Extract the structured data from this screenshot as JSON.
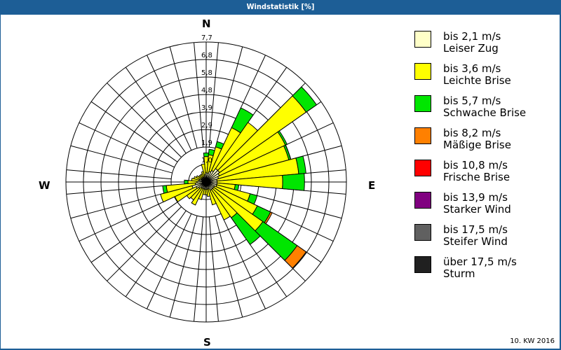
{
  "window": {
    "title": "Windstatistik [%]"
  },
  "compass": {
    "n": "N",
    "e": "E",
    "s": "S",
    "w": "W"
  },
  "footer": {
    "label": "10. KW 2016"
  },
  "legend": [
    {
      "range": "bis 2,1 m/s",
      "name": "Leiser Zug",
      "color": "#ffffc8"
    },
    {
      "range": "bis 3,6 m/s",
      "name": "Leichte Brise",
      "color": "#ffff00"
    },
    {
      "range": "bis 5,7 m/s",
      "name": "Schwache Brise",
      "color": "#00e600"
    },
    {
      "range": "bis 8,2 m/s",
      "name": "Mäßige Brise",
      "color": "#ff8000"
    },
    {
      "range": "bis 10,8 m/s",
      "name": "Frische Brise",
      "color": "#ff0000"
    },
    {
      "range": "bis 13,9 m/s",
      "name": "Starker Wind",
      "color": "#800080"
    },
    {
      "range": "bis 17,5 m/s",
      "name": "Steifer Wind",
      "color": "#606060"
    },
    {
      "range": "über 17,5 m/s",
      "name": "Sturm",
      "color": "#202020"
    }
  ],
  "chart_data": {
    "type": "wind-rose",
    "title": "Windstatistik [%]",
    "subtitle": "10. KW 2016",
    "unit": "%",
    "radial_ticks": [
      "1,0",
      "1,9",
      "2,9",
      "3,9",
      "4,8",
      "5,8",
      "6,8",
      "7,7"
    ],
    "radial_max": 7.7,
    "ring_count": 8,
    "sector_width_deg": 10,
    "speed_classes": [
      "bis 2,1 m/s",
      "bis 3,6 m/s",
      "bis 5,7 m/s",
      "bis 8,2 m/s",
      "bis 10,8 m/s",
      "bis 13,9 m/s",
      "bis 17,5 m/s",
      "über 17,5 m/s"
    ],
    "directions_deg": [
      0,
      10,
      20,
      30,
      40,
      50,
      60,
      70,
      80,
      90,
      100,
      110,
      120,
      130,
      140,
      150,
      160,
      170,
      180,
      190,
      200,
      210,
      220,
      230,
      240,
      250,
      260,
      270,
      280,
      290,
      300,
      310,
      320,
      330,
      340,
      350
    ],
    "series": [
      {
        "name": "Leiser Zug",
        "values": [
          0.5,
          0.5,
          0.6,
          0.7,
          0.9,
          0.9,
          0.8,
          0.7,
          0.6,
          0.6,
          0.6,
          0.6,
          0.5,
          0.5,
          0.5,
          0.5,
          0.4,
          0.4,
          0.4,
          0.4,
          0.4,
          0.4,
          0.4,
          0.5,
          0.6,
          0.8,
          0.6,
          0.5,
          0.4,
          0.4,
          0.3,
          0.3,
          0.3,
          0.3,
          0.3,
          0.4
        ]
      },
      {
        "name": "Leichte Brise",
        "values": [
          0.9,
          1.0,
          1.4,
          2.6,
          3.1,
          5.8,
          4.0,
          4.0,
          4.5,
          3.6,
          1.0,
          1.9,
          2.6,
          3.3,
          1.9,
          1.8,
          0.9,
          0.4,
          0.3,
          0.3,
          0.6,
          1.0,
          0.8,
          0.8,
          1.3,
          1.8,
          1.6,
          0.5,
          0.4,
          0.3,
          0.3,
          0.2,
          0.2,
          0.2,
          0.3,
          0.6
        ]
      },
      {
        "name": "Schwache Brise",
        "values": [
          0.2,
          0.3,
          0.3,
          1.2,
          0.0,
          0.7,
          0.1,
          0.1,
          0.4,
          1.2,
          0.2,
          0.4,
          0.8,
          2.3,
          1.8,
          0.0,
          0.0,
          0.0,
          0.0,
          0.0,
          0.0,
          0.0,
          0.0,
          0.0,
          0.0,
          0.0,
          0.2,
          0.2,
          0.0,
          0.0,
          0.0,
          0.0,
          0.0,
          0.0,
          0.0,
          0.0
        ]
      },
      {
        "name": "Mäßige Brise",
        "values": [
          0,
          0,
          0,
          0,
          0,
          0,
          0,
          0,
          0,
          0,
          0,
          0,
          0.1,
          0.6,
          0,
          0,
          0,
          0,
          0,
          0,
          0,
          0,
          0,
          0,
          0,
          0,
          0,
          0,
          0,
          0,
          0,
          0,
          0,
          0,
          0,
          0
        ]
      },
      {
        "name": "Frische Brise",
        "values": [
          0,
          0,
          0,
          0,
          0,
          0,
          0,
          0,
          0,
          0,
          0,
          0,
          0,
          0,
          0,
          0,
          0,
          0,
          0,
          0,
          0,
          0,
          0,
          0,
          0,
          0,
          0,
          0,
          0,
          0,
          0,
          0,
          0,
          0,
          0,
          0,
          0,
          0
        ]
      },
      {
        "name": "Starker Wind",
        "values": [
          0,
          0,
          0,
          0,
          0,
          0,
          0,
          0,
          0,
          0,
          0,
          0,
          0,
          0,
          0,
          0,
          0,
          0,
          0,
          0,
          0,
          0,
          0,
          0,
          0,
          0,
          0,
          0,
          0,
          0,
          0,
          0,
          0,
          0,
          0,
          0,
          0,
          0
        ]
      },
      {
        "name": "Steifer Wind",
        "values": [
          0,
          0,
          0,
          0,
          0,
          0,
          0,
          0,
          0,
          0,
          0,
          0,
          0,
          0,
          0,
          0,
          0,
          0,
          0,
          0,
          0,
          0,
          0,
          0,
          0,
          0,
          0,
          0,
          0,
          0,
          0,
          0,
          0,
          0,
          0,
          0,
          0,
          0
        ]
      },
      {
        "name": "Sturm",
        "values": [
          0,
          0,
          0,
          0,
          0,
          0,
          0,
          0,
          0,
          0,
          0,
          0,
          0,
          0,
          0,
          0,
          0,
          0,
          0,
          0,
          0,
          0,
          0,
          0,
          0,
          0,
          0,
          0,
          0,
          0,
          0,
          0,
          0,
          0,
          0,
          0,
          0,
          0
        ]
      }
    ],
    "legend_position": "right",
    "grid": true
  }
}
